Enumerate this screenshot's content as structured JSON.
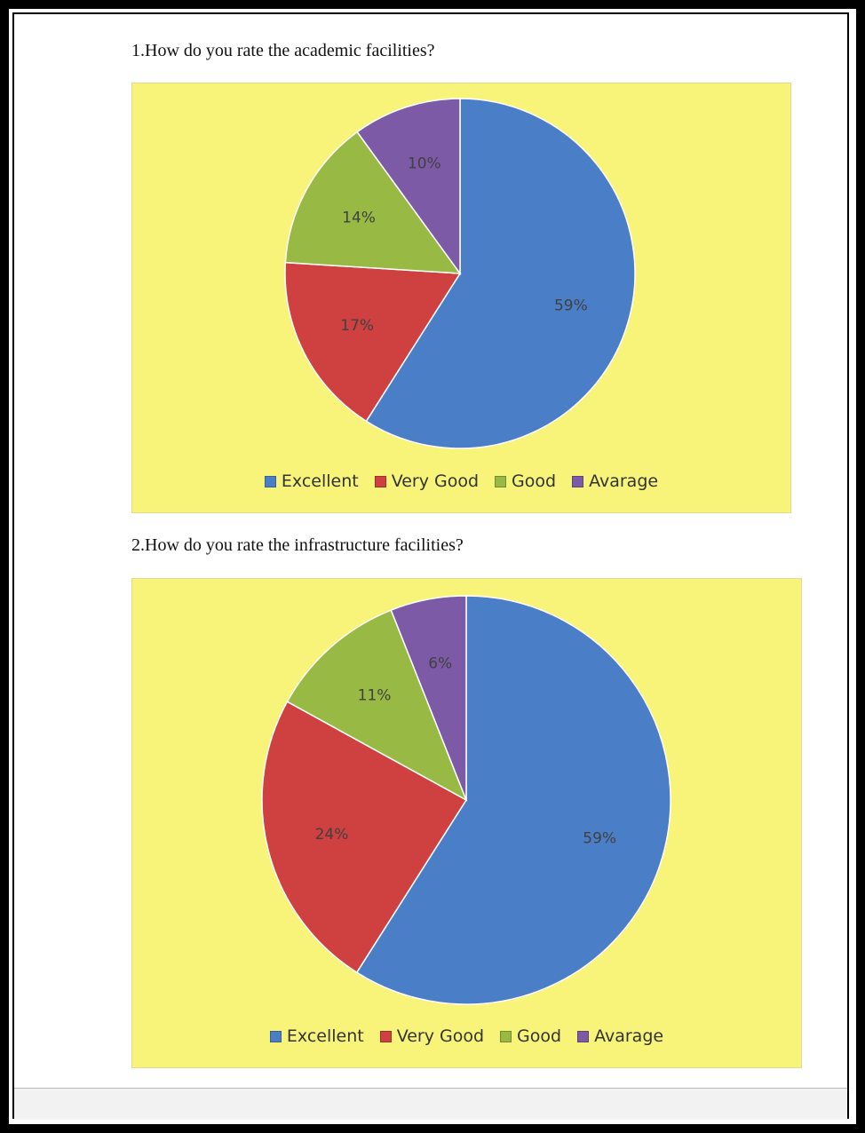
{
  "questions": {
    "q1": "1.How do you rate the academic facilities?",
    "q2": "2.How do you rate the infrastructure facilities?"
  },
  "legend_labels": [
    "Excellent",
    "Very Good",
    "Good",
    "Avarage"
  ],
  "colors": {
    "Excellent": "#4a7fc8",
    "Very Good": "#cf4040",
    "Good": "#98ba45",
    "Avarage": "#7c5aa6",
    "background": "#f8f47a"
  },
  "chart_data": [
    {
      "type": "pie",
      "categories": [
        "Excellent",
        "Very Good",
        "Good",
        "Avarage"
      ],
      "values": [
        59,
        17,
        14,
        10
      ],
      "data_labels": [
        "59%",
        "17%",
        "14%",
        "10%"
      ],
      "legend": "bottom"
    },
    {
      "type": "pie",
      "categories": [
        "Excellent",
        "Very Good",
        "Good",
        "Avarage"
      ],
      "values": [
        59,
        24,
        11,
        6
      ],
      "data_labels": [
        "59%",
        "24%",
        "11%",
        "6%"
      ],
      "legend": "bottom"
    }
  ]
}
